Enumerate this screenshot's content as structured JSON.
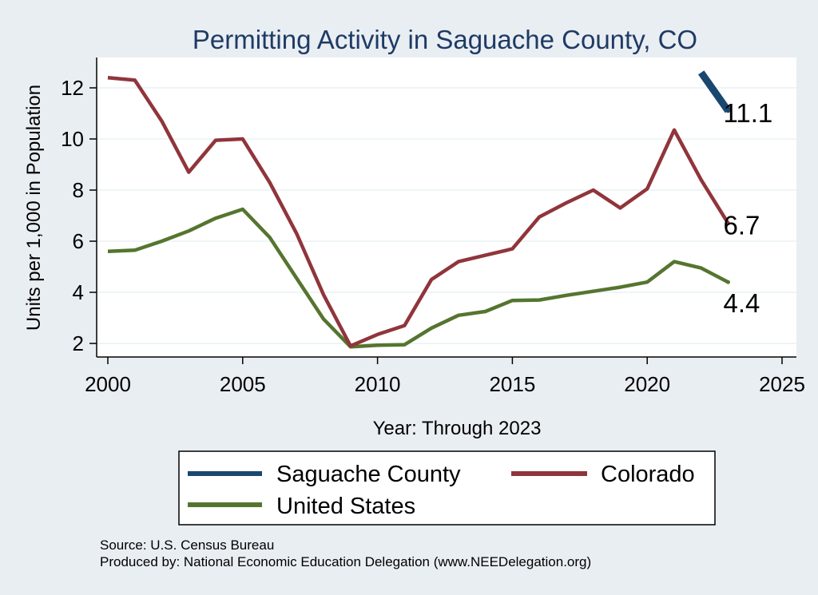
{
  "chart_data": {
    "type": "line",
    "title": "Permitting Activity in Saguache County, CO",
    "xlabel": "Year: Through 2023",
    "ylabel": "Units per 1,000 in Population",
    "xlim": [
      2000,
      2025
    ],
    "ylim": [
      1.5,
      13.2
    ],
    "x_ticks": [
      2000,
      2005,
      2010,
      2015,
      2020,
      2025
    ],
    "y_ticks": [
      2,
      4,
      6,
      8,
      10,
      12
    ],
    "grid": true,
    "legend_placement": "bottom",
    "series": [
      {
        "name": "Saguache County",
        "key": "saguache",
        "color": "#1a476f",
        "x": [
          2022,
          2023
        ],
        "values": [
          12.6,
          11.1
        ],
        "end_label": "11.1"
      },
      {
        "name": "Colorado",
        "key": "colorado",
        "color": "#90353b",
        "x": [
          2000,
          2001,
          2002,
          2003,
          2004,
          2005,
          2006,
          2007,
          2008,
          2009,
          2010,
          2011,
          2012,
          2013,
          2014,
          2015,
          2016,
          2017,
          2018,
          2019,
          2020,
          2021,
          2022,
          2023
        ],
        "values": [
          12.4,
          12.3,
          10.7,
          8.7,
          9.95,
          10.0,
          8.3,
          6.3,
          3.9,
          1.9,
          2.35,
          2.7,
          4.5,
          5.2,
          5.45,
          5.7,
          6.95,
          7.5,
          8.0,
          7.3,
          8.05,
          10.35,
          8.4,
          6.7
        ],
        "end_label": "6.7"
      },
      {
        "name": "United States",
        "key": "us",
        "color": "#55752f",
        "x": [
          2000,
          2001,
          2002,
          2003,
          2004,
          2005,
          2006,
          2007,
          2008,
          2009,
          2010,
          2011,
          2012,
          2013,
          2014,
          2015,
          2016,
          2017,
          2018,
          2019,
          2020,
          2021,
          2022,
          2023
        ],
        "values": [
          5.6,
          5.65,
          6.0,
          6.4,
          6.9,
          7.25,
          6.15,
          4.55,
          2.95,
          1.87,
          1.93,
          1.95,
          2.6,
          3.1,
          3.25,
          3.68,
          3.7,
          3.88,
          4.04,
          4.2,
          4.4,
          5.2,
          4.95,
          4.4
        ],
        "end_label": "4.4"
      }
    ]
  },
  "footer": {
    "source": "Source: U.S. Census Bureau",
    "produced_by": "Produced by: National Economic Education Delegation (www.NEEDelegation.org)"
  }
}
